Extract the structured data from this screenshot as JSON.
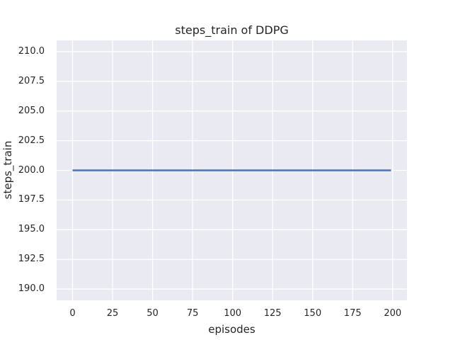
{
  "figure": {
    "background_color": "#ffffff"
  },
  "chart_data": {
    "type": "line",
    "title": "steps_train of DDPG",
    "xlabel": "episodes",
    "ylabel": "steps_train",
    "xlim": [
      -9.95,
      208.95
    ],
    "ylim": [
      189.05,
      210.95
    ],
    "xtick_values": [
      0,
      25,
      50,
      75,
      100,
      125,
      150,
      175,
      200
    ],
    "xtick_labels": [
      "0",
      "25",
      "50",
      "75",
      "100",
      "125",
      "150",
      "175",
      "200"
    ],
    "ytick_values": [
      190.0,
      192.5,
      195.0,
      197.5,
      200.0,
      202.5,
      205.0,
      207.5,
      210.0
    ],
    "ytick_labels": [
      "190.0",
      "192.5",
      "195.0",
      "197.5",
      "200.0",
      "202.5",
      "205.0",
      "207.5",
      "210.0"
    ],
    "grid": true,
    "legend": false,
    "series": [
      {
        "name": "steps_train",
        "x": [
          0,
          199
        ],
        "y": [
          200,
          200
        ],
        "color": "#4c72b0",
        "linewidth": 2.4
      }
    ],
    "colors": {
      "axes_background": "#eaeaf2",
      "gridline": "#ffffff",
      "text": "#262626"
    }
  }
}
